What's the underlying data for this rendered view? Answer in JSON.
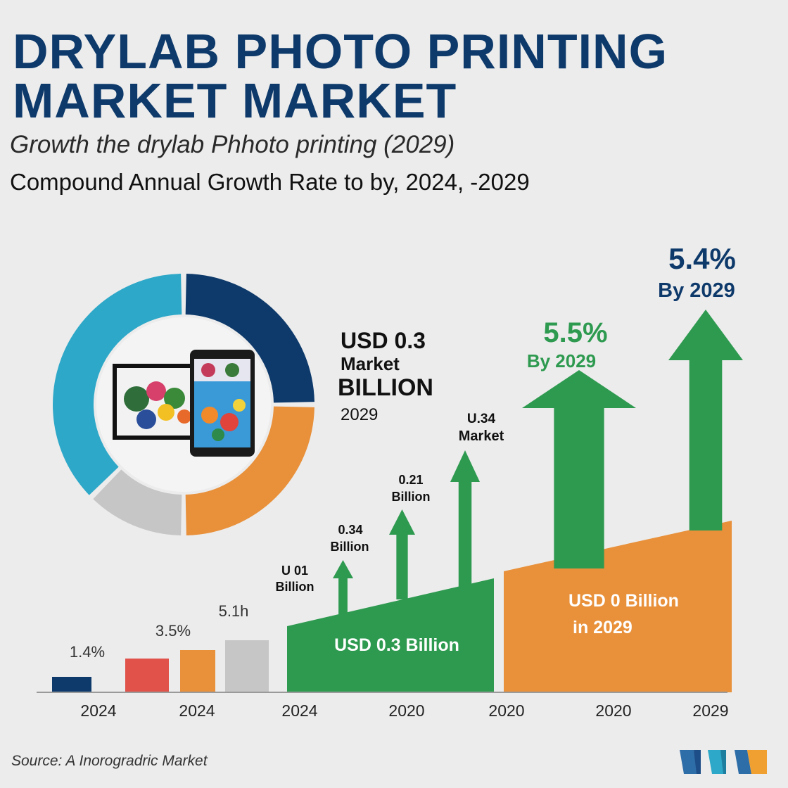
{
  "title": {
    "line1": "DRYLAB PHOTO PRINTING",
    "line2": "MARKET  MARKET"
  },
  "subtitle": "Growth the drylab Phhoto printing (2029)",
  "subtitle2": "Compound Annual Growth  Rate to by, 2024, -2029",
  "centre_text": {
    "line1": "USD 0.3",
    "line2": "Market",
    "line3": "BILLION",
    "line4": "2029"
  },
  "source": "Source: A Inorogradric Market",
  "colors": {
    "navy": "#0e3a6b",
    "teal": "#2ea8c8",
    "orange": "#e8903a",
    "gray": "#c6c6c6",
    "green": "#2e9a50",
    "red": "#e0524a"
  },
  "chart_data": {
    "type": "bar",
    "categories": [
      "2024",
      "2024",
      "2024",
      "2020",
      "2020",
      "2020",
      "2029"
    ],
    "small_bars": [
      {
        "label": "1.4%",
        "color": "navy"
      },
      {
        "label": "3.5%",
        "color": "red"
      },
      {
        "label": "",
        "color": "orange"
      },
      {
        "label": "5.1h",
        "color": "gray"
      }
    ],
    "arrows": [
      {
        "line1": "U 01",
        "line2": "Billion"
      },
      {
        "line1": "0.34",
        "line2": "Billion"
      },
      {
        "line1": "0.21",
        "line2": "Billion"
      },
      {
        "line1": "U.34",
        "line2": "Market"
      },
      {
        "line1": "5.5%",
        "line2": "By  2029"
      },
      {
        "line1": "5.4%",
        "line2": "By  2029"
      }
    ],
    "areas": [
      {
        "label": "USD 0.3 Billion",
        "color": "green"
      },
      {
        "label_line1": "USD 0 Billion",
        "label_line2": "in 2029",
        "color": "orange"
      }
    ],
    "donut_segments": [
      {
        "color": "navy",
        "share": 0.25
      },
      {
        "color": "orange",
        "share": 0.25
      },
      {
        "color": "gray",
        "share": 0.125
      },
      {
        "color": "teal",
        "share": 0.375
      }
    ]
  }
}
